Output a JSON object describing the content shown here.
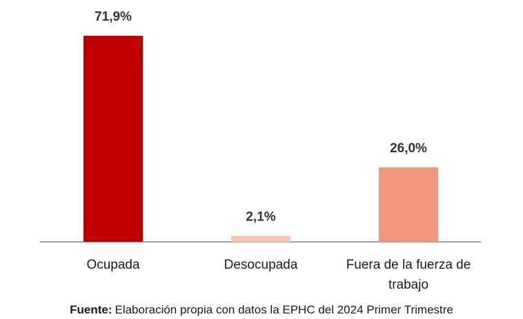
{
  "chart_data": {
    "type": "bar",
    "categories": [
      "Ocupada",
      "Desocupada",
      "Fuera de la fuerza de trabajo"
    ],
    "values": [
      71.9,
      2.1,
      26.0
    ],
    "value_labels": [
      "71,9%",
      "2,1%",
      "26,0%"
    ],
    "colors": [
      "#c00000",
      "#f9c6b4",
      "#f1977c"
    ]
  },
  "source": {
    "label": "Fuente:",
    "text": "Elaboración propia con datos la EPHC del 2024 Primer Trimestre"
  }
}
